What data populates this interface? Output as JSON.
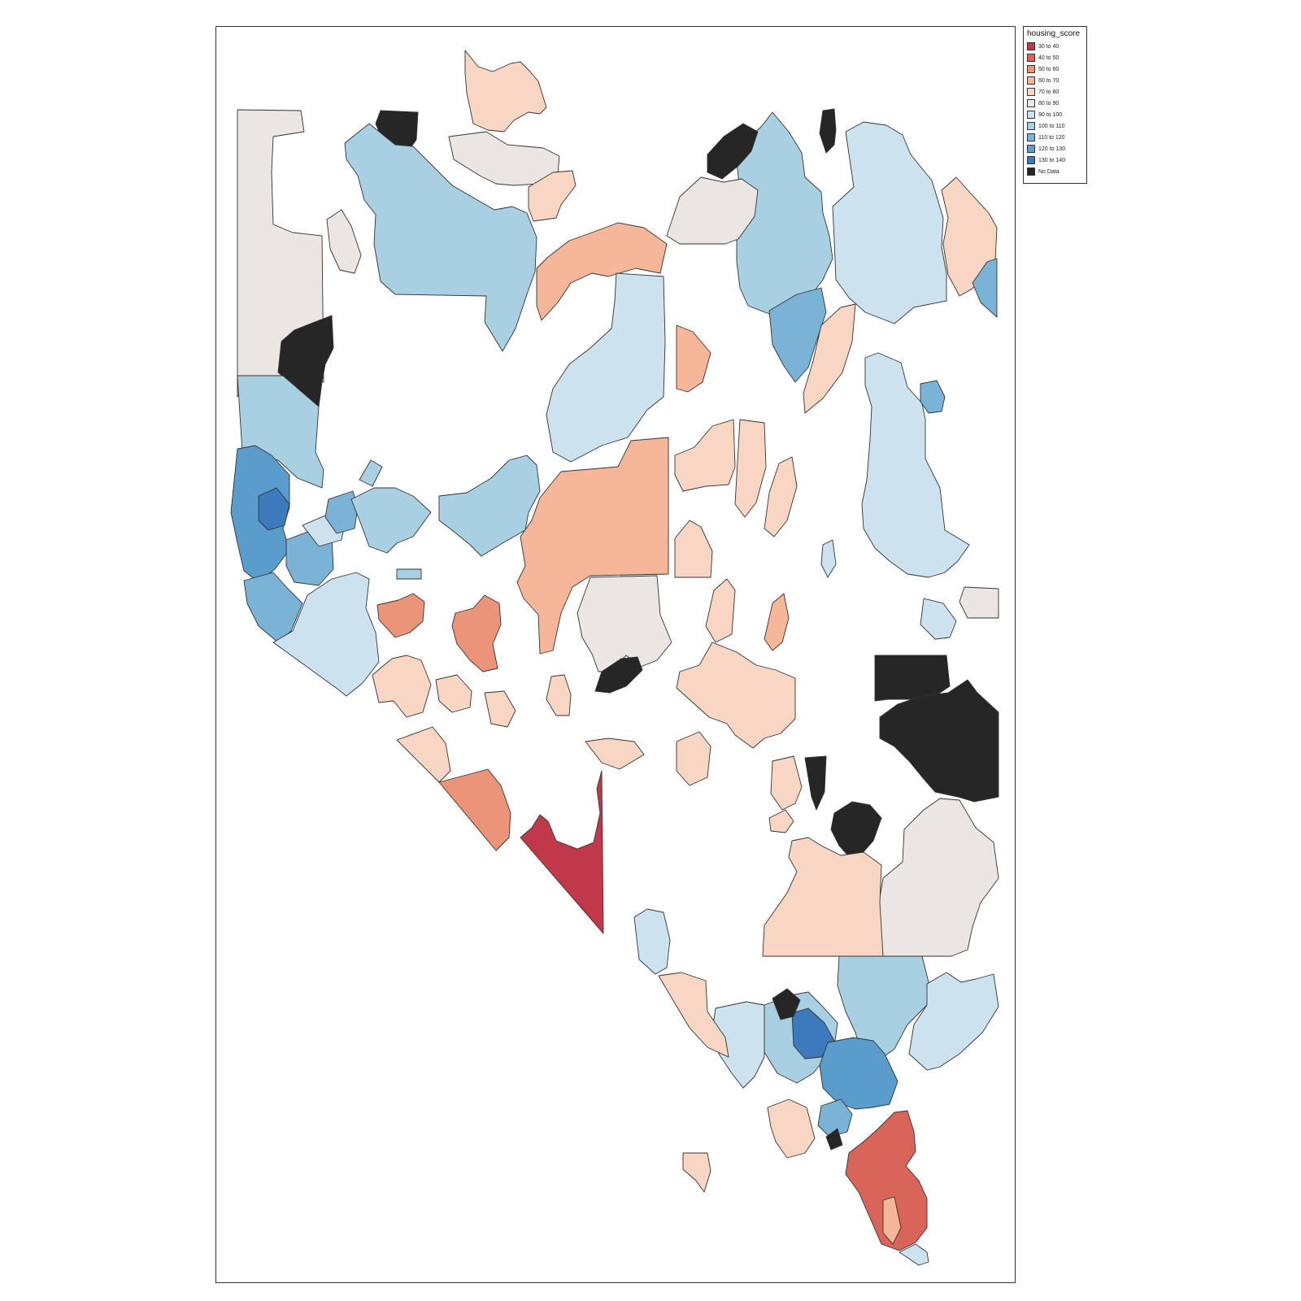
{
  "legend": {
    "title": "housing_score",
    "items": [
      {
        "label": "30 to 40",
        "color": "#c1384a"
      },
      {
        "label": "40 to 50",
        "color": "#d8645a"
      },
      {
        "label": "50 to 60",
        "color": "#ec9479"
      },
      {
        "label": "60 to 70",
        "color": "#f5b699"
      },
      {
        "label": "70 to 80",
        "color": "#f9d6c4"
      },
      {
        "label": "80 to 90",
        "color": "#ebe6e3"
      },
      {
        "label": "90 to 100",
        "color": "#cde2ef"
      },
      {
        "label": "100 to 110",
        "color": "#a9cfe3"
      },
      {
        "label": "110 to 120",
        "color": "#7ab3d6"
      },
      {
        "label": "120 to 130",
        "color": "#5a9ccc"
      },
      {
        "label": "130 to 140",
        "color": "#3c79bd"
      },
      {
        "label": "No Data",
        "color": "#262626"
      }
    ]
  }
}
